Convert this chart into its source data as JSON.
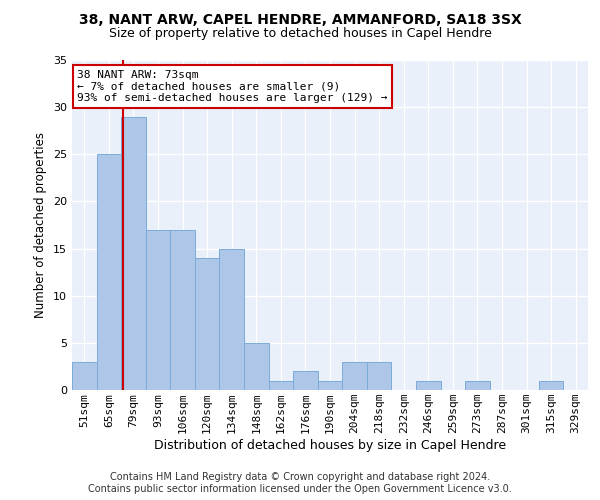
{
  "title1": "38, NANT ARW, CAPEL HENDRE, AMMANFORD, SA18 3SX",
  "title2": "Size of property relative to detached houses in Capel Hendre",
  "xlabel": "Distribution of detached houses by size in Capel Hendre",
  "ylabel": "Number of detached properties",
  "categories": [
    "51sqm",
    "65sqm",
    "79sqm",
    "93sqm",
    "106sqm",
    "120sqm",
    "134sqm",
    "148sqm",
    "162sqm",
    "176sqm",
    "190sqm",
    "204sqm",
    "218sqm",
    "232sqm",
    "246sqm",
    "259sqm",
    "273sqm",
    "287sqm",
    "301sqm",
    "315sqm",
    "329sqm"
  ],
  "values": [
    3,
    25,
    29,
    17,
    17,
    14,
    15,
    5,
    1,
    2,
    1,
    3,
    3,
    0,
    1,
    0,
    1,
    0,
    0,
    1,
    0
  ],
  "bar_color": "#aec6e8",
  "bar_edge_color": "#7aabda",
  "vline_x": 1.57,
  "vline_color": "#cc0000",
  "annotation_text": "38 NANT ARW: 73sqm\n← 7% of detached houses are smaller (9)\n93% of semi-detached houses are larger (129) →",
  "annotation_box_color": "white",
  "annotation_box_edge_color": "#cc0000",
  "ylim": [
    0,
    35
  ],
  "yticks": [
    0,
    5,
    10,
    15,
    20,
    25,
    30,
    35
  ],
  "footer1": "Contains HM Land Registry data © Crown copyright and database right 2024.",
  "footer2": "Contains public sector information licensed under the Open Government Licence v3.0.",
  "background_color": "#eaf0f9",
  "grid_color": "white",
  "title1_fontsize": 10,
  "title2_fontsize": 9,
  "xlabel_fontsize": 9,
  "ylabel_fontsize": 8.5,
  "tick_fontsize": 8,
  "footer_fontsize": 7,
  "annotation_fontsize": 8
}
